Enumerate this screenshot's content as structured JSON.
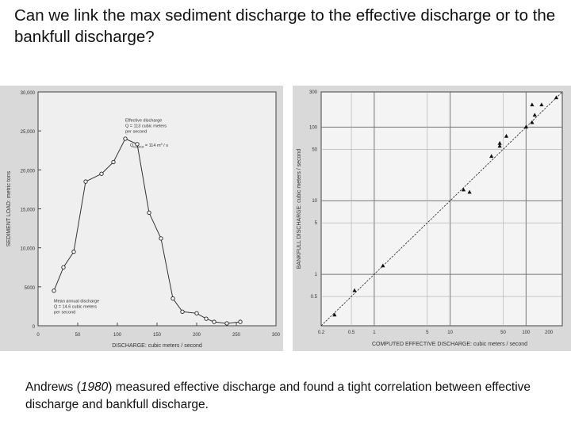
{
  "slide": {
    "title": "Can we link the max sediment discharge to the effective discharge or to the bankfull discharge?",
    "caption": {
      "before": "Andrews (",
      "year": "1980",
      "after": ") measured effective discharge and found a tight correlation between effective discharge and bankfull discharge."
    }
  },
  "chart_data": [
    {
      "type": "line",
      "title": "",
      "xlabel": "DISCHARGE:  cubic meters / second",
      "ylabel": "SEDIMENT LOAD:  metric tons",
      "xlim": [
        0,
        300
      ],
      "ylim": [
        0,
        30000
      ],
      "xticks": [
        0,
        50,
        100,
        150,
        200,
        250,
        300
      ],
      "yticks": [
        0,
        5000,
        10000,
        15000,
        20000,
        25000,
        30000
      ],
      "ytick_labels": [
        "0",
        "5000",
        "10,000",
        "15,000",
        "20,000",
        "25,000",
        "30,000"
      ],
      "x": [
        20,
        32,
        45,
        60,
        80,
        95,
        110,
        125,
        140,
        155,
        170,
        182,
        200,
        212,
        222,
        238,
        255
      ],
      "y": [
        4500,
        7500,
        9500,
        18500,
        19500,
        21000,
        24000,
        23300,
        14500,
        11200,
        3500,
        1800,
        1600,
        900,
        500,
        300,
        500
      ],
      "annotations": [
        {
          "text": [
            "Effective discharge",
            "Q = 113 cubic meters",
            "per second"
          ],
          "x": 110,
          "y": 26200
        },
        {
          "text": [
            "Q",
            "bankfull",
            " = 114 m",
            "3",
            " / s"
          ],
          "x": 116,
          "y": 23000
        },
        {
          "text": [
            "Mean annual discharge",
            "Q = 14.6 cubic meters",
            "per second"
          ],
          "x": 20,
          "y": 3000
        }
      ]
    },
    {
      "type": "scatter",
      "scale": "log-log",
      "xlabel": "COMPUTED EFFECTIVE DISCHARGE:  cubic meters / second",
      "ylabel": "BANKFULL DISCHARGE:  cubic meters / second",
      "xlim": [
        0.2,
        300
      ],
      "ylim": [
        0.2,
        300
      ],
      "xticks": [
        0.2,
        0.5,
        1,
        5,
        10,
        50,
        100,
        200
      ],
      "xtick_labels": [
        "0.2",
        "0.5",
        "1",
        "5",
        "10",
        "50",
        "100",
        "200"
      ],
      "yticks": [
        0.5,
        1,
        5,
        10,
        50,
        100,
        300
      ],
      "ytick_labels": [
        "0.5",
        "1",
        "5",
        "10",
        "50",
        "100",
        "300"
      ],
      "fit_line": [
        [
          0.2,
          0.2
        ],
        [
          300,
          300
        ]
      ],
      "points": [
        [
          0.3,
          0.28
        ],
        [
          0.55,
          0.6
        ],
        [
          1.3,
          1.3
        ],
        [
          15,
          14
        ],
        [
          18,
          13
        ],
        [
          35,
          40
        ],
        [
          45,
          55
        ],
        [
          45,
          60
        ],
        [
          55,
          75
        ],
        [
          100,
          100
        ],
        [
          120,
          115
        ],
        [
          130,
          145
        ],
        [
          120,
          200
        ],
        [
          160,
          200
        ],
        [
          250,
          250
        ]
      ]
    }
  ]
}
